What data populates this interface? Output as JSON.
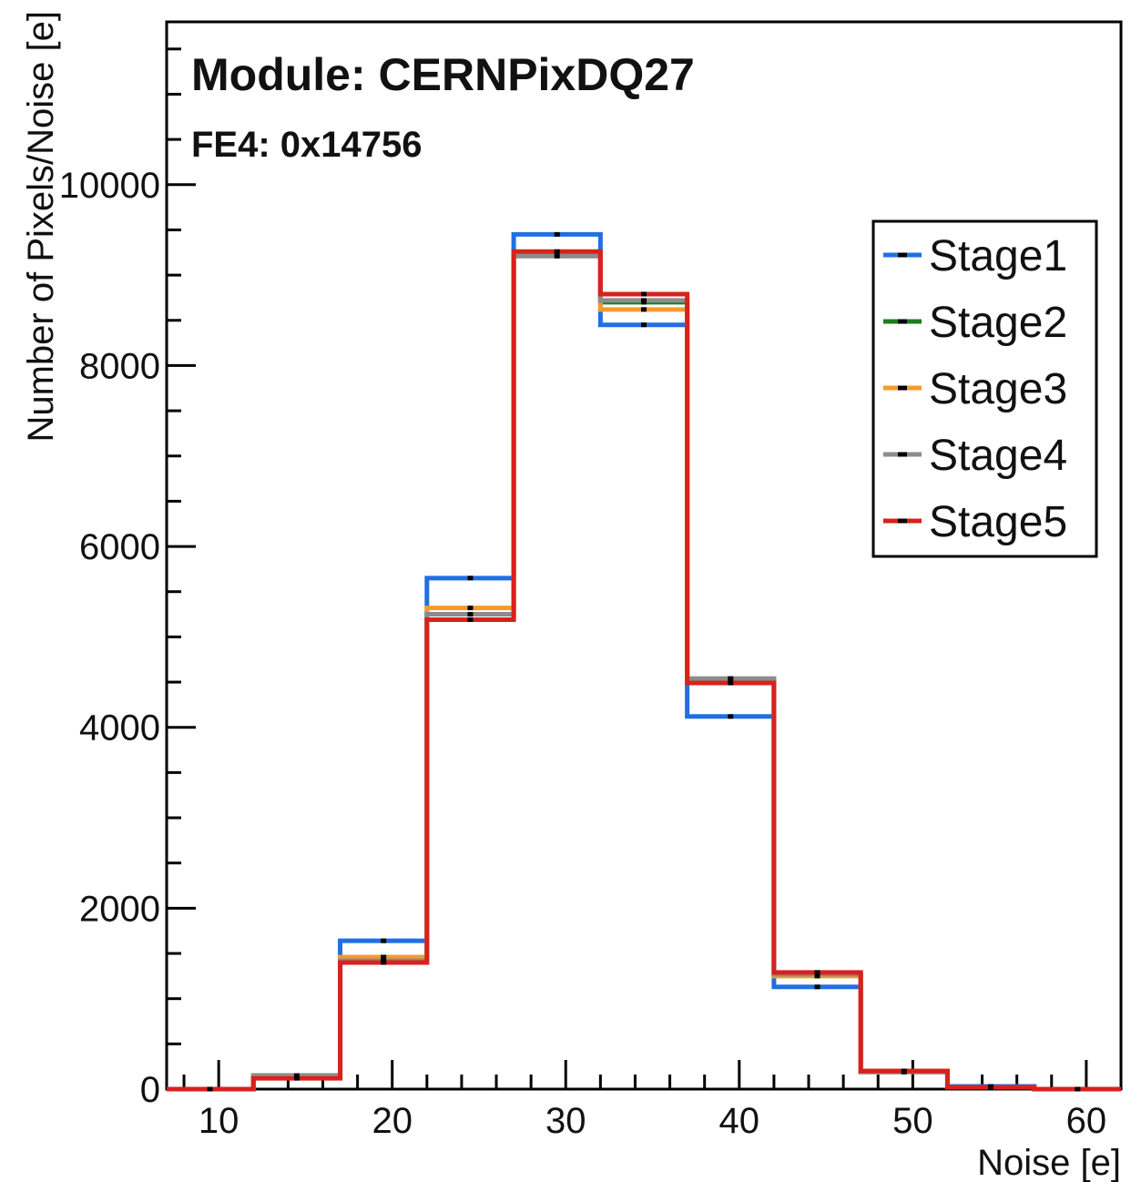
{
  "chart_data": {
    "type": "line",
    "subtype": "step-histogram",
    "xlabel": "Noise [e]",
    "ylabel": "Number of Pixels/Noise [e]",
    "xlim": [
      7,
      62
    ],
    "ylim": [
      0,
      11800
    ],
    "x_ticks": [
      10,
      20,
      30,
      40,
      50,
      60
    ],
    "y_ticks": [
      0,
      2000,
      4000,
      6000,
      8000,
      10000
    ],
    "grid": false,
    "legend_position": "top-right",
    "annotations": [
      "Module: CERNPixDQ27",
      "FE4: 0x14756"
    ],
    "bin_edges": [
      7,
      12,
      17,
      22,
      27,
      32,
      37,
      42,
      47,
      52,
      57,
      62
    ],
    "bin_centers": [
      9.5,
      14.5,
      19.5,
      24.5,
      29.5,
      34.5,
      39.5,
      44.5,
      49.5,
      54.5,
      59.5
    ],
    "series": [
      {
        "name": "Stage1",
        "color": "#1f6fe5",
        "values": [
          0,
          150,
          1640,
          5650,
          9450,
          8450,
          4120,
          1130,
          200,
          30,
          0
        ]
      },
      {
        "name": "Stage2",
        "color": "#1e7d1e",
        "values": [
          0,
          130,
          1430,
          5250,
          9220,
          8700,
          4520,
          1260,
          190,
          20,
          0
        ]
      },
      {
        "name": "Stage3",
        "color": "#f59b2b",
        "values": [
          0,
          140,
          1460,
          5320,
          9250,
          8620,
          4510,
          1250,
          200,
          20,
          0
        ]
      },
      {
        "name": "Stage4",
        "color": "#8c8c8c",
        "values": [
          0,
          130,
          1420,
          5250,
          9210,
          8720,
          4540,
          1270,
          190,
          20,
          0
        ]
      },
      {
        "name": "Stage5",
        "color": "#d9211c",
        "values": [
          0,
          120,
          1400,
          5190,
          9260,
          8790,
          4490,
          1290,
          200,
          20,
          0
        ]
      }
    ]
  }
}
